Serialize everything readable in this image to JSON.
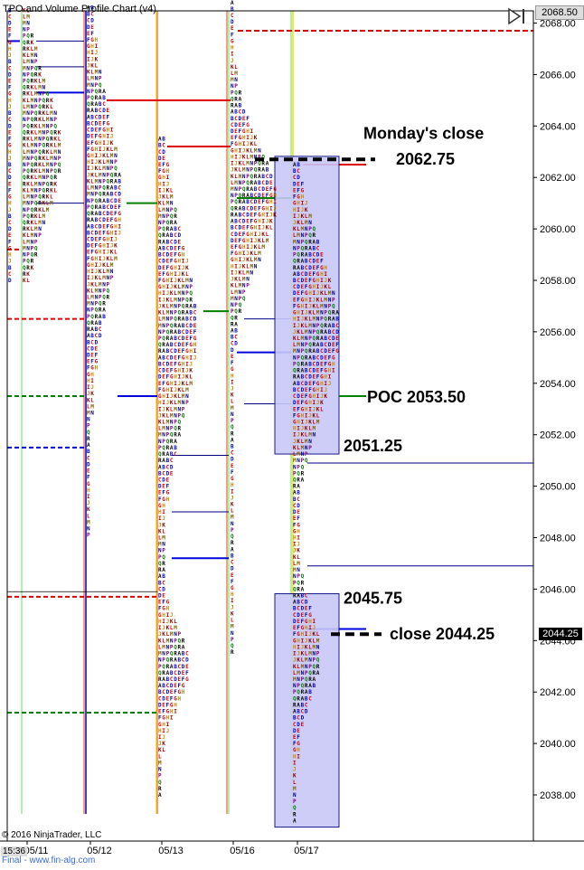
{
  "chart_data": {
    "type": "tpo_profile",
    "title": "TPO and Volume Profile Chart (v4)",
    "copyright": "© 2016 NinjaTrader, LLC",
    "credit": "Final - www.fin-alg.com",
    "time_label": "15:36",
    "ylim": [
      2036.5,
      2069.0
    ],
    "yticks": [
      "2038.00",
      "2040.00",
      "2042.00",
      "2044.00",
      "2046.00",
      "2048.00",
      "2050.00",
      "2052.00",
      "2054.00",
      "2056.00",
      "2058.00",
      "2060.00",
      "2062.00",
      "2064.00",
      "2066.00",
      "2068.00"
    ],
    "last_price_top": "2068.50",
    "last_price_tag": "2044.25",
    "dates": [
      "05/11",
      "05/12",
      "05/13",
      "05/16",
      "05/17"
    ],
    "profiles": [
      {
        "date": "05/11",
        "low": 2058.0,
        "high": 2068.8,
        "poc": 2061.0,
        "letters": [
          "A",
          "B",
          "C",
          "D",
          "E",
          "F",
          "G",
          "H",
          "I",
          "J",
          "K",
          "L",
          "M",
          "N",
          "P",
          "Q",
          "R"
        ]
      },
      {
        "date": "05/12",
        "low": 2048.0,
        "high": 2068.8,
        "poc": 2061.0,
        "letters": [
          "A",
          "B",
          "C",
          "D",
          "E",
          "F",
          "G",
          "H",
          "I",
          "J",
          "K",
          "L",
          "M",
          "N",
          "P",
          "Q",
          "R"
        ]
      },
      {
        "date": "05/13",
        "low": 2037.5,
        "high": 2063.5,
        "poc": 2057.0,
        "letters": [
          "A",
          "B",
          "C",
          "D",
          "E",
          "F",
          "G",
          "H",
          "I",
          "J",
          "K",
          "L",
          "M",
          "N",
          "P",
          "Q",
          "R"
        ]
      },
      {
        "date": "05/16",
        "low": 2043.5,
        "high": 2068.8,
        "poc": 2061.0,
        "letters": [
          "A",
          "B",
          "C",
          "D",
          "E",
          "F",
          "G",
          "H",
          "I",
          "J",
          "K",
          "L",
          "M",
          "N",
          "P",
          "Q",
          "R"
        ]
      },
      {
        "date": "05/17",
        "low": 2037.0,
        "high": 2062.75,
        "poc": 2053.5,
        "letters": [
          "A",
          "B",
          "C",
          "D",
          "E",
          "F",
          "G",
          "H",
          "I",
          "J",
          "K",
          "L",
          "M",
          "N",
          "P",
          "Q",
          "R"
        ]
      }
    ],
    "value_areas": [
      {
        "date": "05/17",
        "low": 2051.25,
        "high": 2062.75
      },
      {
        "date": "05/17",
        "low": 2036.75,
        "high": 2045.75
      }
    ],
    "annotations": [
      {
        "text": "Monday's close",
        "price": 2062.75
      },
      {
        "text": "2062.75",
        "price": 2062.75
      },
      {
        "text": "POC 2053.50",
        "price": 2053.5
      },
      {
        "text": "2051.25",
        "price": 2051.25
      },
      {
        "text": "2045.75",
        "price": 2045.75
      },
      {
        "text": "close 2044.25",
        "price": 2044.25
      }
    ],
    "grid": false
  },
  "colors": {
    "A": "#000000",
    "B": "#0000cc",
    "C": "#cc0000",
    "D": "#0000cc",
    "E": "#cc0000",
    "F": "#000080",
    "G": "#cc0000",
    "H": "#cc8800",
    "I": "#aa0000",
    "J": "#cc8800",
    "K": "#800000",
    "L": "#cc0000",
    "M": "#806000",
    "N": "#000080",
    "P": "#800080",
    "Q": "#008000",
    "R": "#000000",
    "value_area_fill": "#c8c8f8",
    "value_area_stroke": "#000080",
    "poc_line": "#008000",
    "dashed_red": "#e00000",
    "dashed_green": "#008000",
    "dashed_blue": "#0000dd",
    "yellow_divider": "#f0e000",
    "green_divider": "#90ee90",
    "salmon_divider": "#f08060"
  }
}
